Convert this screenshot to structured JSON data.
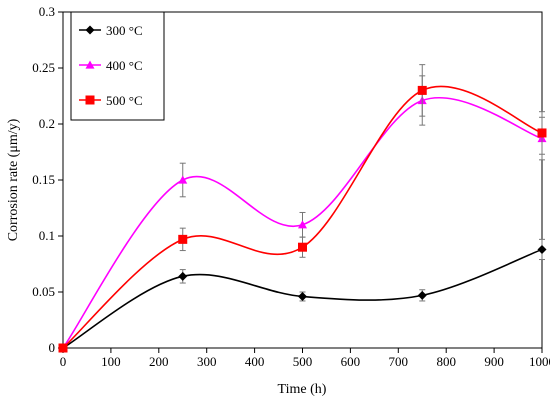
{
  "chart_data": {
    "type": "line",
    "xlabel": "Time (h)",
    "ylabel": "Corrosion rate (μm/y)",
    "xlim": [
      0,
      1000
    ],
    "ylim": [
      0,
      0.3
    ],
    "xticks": [
      "0",
      "100",
      "200",
      "300",
      "400",
      "500",
      "600",
      "700",
      "800",
      "900",
      "1000"
    ],
    "yticks": [
      "0",
      "0.05",
      "0.1",
      "0.15",
      "0.2",
      "0.25",
      "0.3"
    ],
    "grid": false,
    "legend_position": "top-left",
    "x": [
      0,
      250,
      500,
      750,
      1000
    ],
    "series": [
      {
        "name": "300 °C",
        "color": "#000000",
        "marker": "diamond",
        "values": [
          0,
          0.064,
          0.046,
          0.047,
          0.088
        ],
        "errors": [
          0,
          0.006,
          0.004,
          0.005,
          0.009
        ]
      },
      {
        "name": "400 °C",
        "color": "#ff00ff",
        "marker": "triangle",
        "values": [
          0,
          0.15,
          0.11,
          0.221,
          0.187
        ],
        "errors": [
          0,
          0.015,
          0.011,
          0.022,
          0.019
        ]
      },
      {
        "name": "500 °C",
        "color": "#ff0000",
        "marker": "square",
        "values": [
          0,
          0.097,
          0.09,
          0.23,
          0.192
        ],
        "errors": [
          0,
          0.01,
          0.009,
          0.023,
          0.019
        ]
      }
    ]
  }
}
